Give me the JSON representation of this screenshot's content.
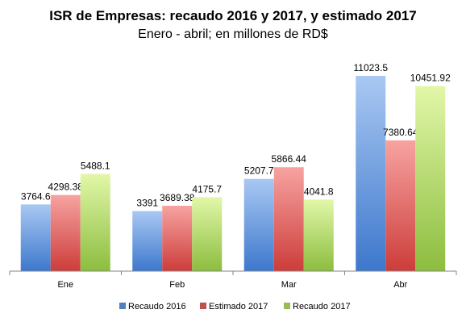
{
  "chart_data": {
    "type": "bar",
    "title": "ISR de Empresas: recaudo 2016 y 2017, y estimado 2017",
    "subtitle": "Enero - abril; en millones de RD$",
    "categories": [
      "Ene",
      "Feb",
      "Mar",
      "Abr"
    ],
    "series": [
      {
        "name": "Recaudo 2016",
        "values": [
          3764.6,
          3391,
          5207.7,
          11023.5
        ],
        "labels": [
          "3764.6",
          "3391",
          "5207.7",
          "11023.5"
        ],
        "color": "#4f81bd"
      },
      {
        "name": "Estimado 2017",
        "values": [
          4298.38,
          3689.38,
          5866.44,
          7380.64
        ],
        "labels": [
          "4298.38",
          "3689.38",
          "5866.44",
          "7380.64"
        ],
        "color": "#c0504d"
      },
      {
        "name": "Recaudo 2017",
        "values": [
          5488.1,
          4175.7,
          4041.8,
          10451.92
        ],
        "labels": [
          "5488.1",
          "4175.7",
          "4041.8",
          "10451.92"
        ],
        "color": "#9bbb59"
      }
    ],
    "legend_position": "bottom",
    "grid": false,
    "ylim": [
      0,
      11023.5
    ]
  }
}
